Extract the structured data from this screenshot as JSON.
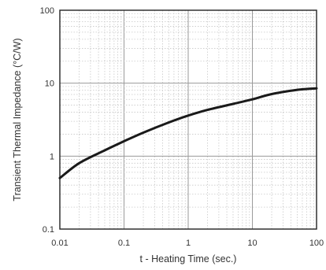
{
  "chart_data": {
    "type": "line",
    "xlabel": "t - Heating Time (sec.)",
    "ylabel": "Transient Thermal Impedance (°C/W)",
    "x_scale": "log",
    "y_scale": "log",
    "xlim": [
      0.01,
      100
    ],
    "ylim": [
      0.1,
      100
    ],
    "x_tick_labels": [
      "0.01",
      "0.1",
      "1",
      "10",
      "100"
    ],
    "y_tick_labels": [
      "100",
      "10",
      "1",
      "0.1"
    ],
    "x_ticks": [
      0.01,
      0.1,
      1,
      10,
      100
    ],
    "y_ticks": [
      100,
      10,
      1,
      0.1
    ],
    "grid": true,
    "series": [
      {
        "x": [
          0.01,
          0.02,
          0.05,
          0.1,
          0.2,
          0.5,
          1,
          2,
          5,
          10,
          20,
          50,
          100
        ],
        "y": [
          0.5,
          0.8,
          1.2,
          1.6,
          2.1,
          2.9,
          3.6,
          4.3,
          5.2,
          6.0,
          7.1,
          8.1,
          8.5
        ]
      }
    ]
  }
}
